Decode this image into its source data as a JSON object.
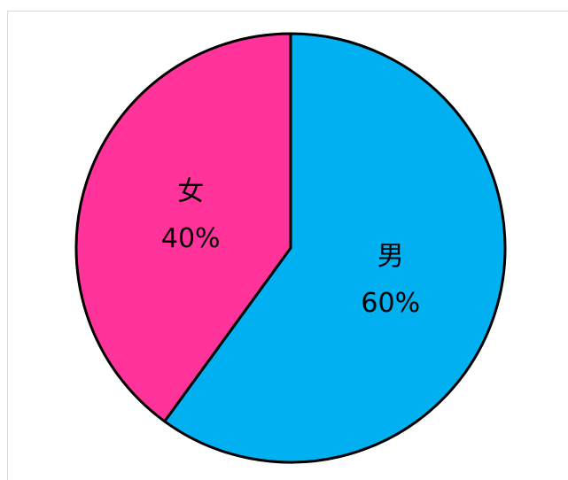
{
  "chart_data": {
    "type": "pie",
    "categories": [
      "男",
      "女"
    ],
    "values": [
      60,
      40
    ],
    "value_labels": [
      "60%",
      "40%"
    ],
    "colors": [
      "#00b0f0",
      "#ff3399"
    ]
  }
}
